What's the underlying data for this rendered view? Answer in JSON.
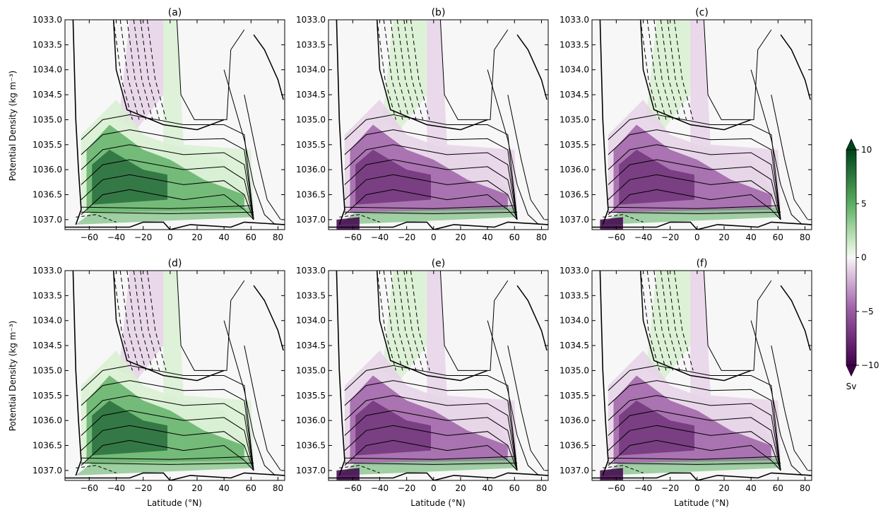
{
  "chart_data": {
    "type": "heatmap",
    "panels": [
      {
        "label": "(a)",
        "pattern": "positive"
      },
      {
        "label": "(b)",
        "pattern": "negative"
      },
      {
        "label": "(c)",
        "pattern": "negative"
      },
      {
        "label": "(d)",
        "pattern": "positive"
      },
      {
        "label": "(e)",
        "pattern": "negative"
      },
      {
        "label": "(f)",
        "pattern": "negative"
      }
    ],
    "xlabel": "Latitude (°N)",
    "ylabel": "Potential Density (kg m⁻³)",
    "xlim": [
      -78,
      85
    ],
    "ylim": [
      1033.0,
      1037.2
    ],
    "xticks": [
      -60,
      -40,
      -20,
      0,
      20,
      40,
      60,
      80
    ],
    "xtick_labels": [
      "−60",
      "−40",
      "−20",
      "0",
      "20",
      "40",
      "60",
      "80"
    ],
    "yticks": [
      1033.0,
      1033.5,
      1034.0,
      1034.5,
      1035.0,
      1035.5,
      1036.0,
      1036.5,
      1037.0
    ],
    "ytick_labels": [
      "1033.0",
      "1033.5",
      "1034.0",
      "1034.5",
      "1035.0",
      "1035.5",
      "1036.0",
      "1036.5",
      "1037.0"
    ],
    "colorbar": {
      "label": "Sv",
      "range": [
        -10,
        10
      ],
      "ticks": [
        10,
        5,
        0,
        -5,
        -10
      ],
      "tick_labels": [
        "10",
        "5",
        "0",
        "−5",
        "−10"
      ],
      "colors": {
        "neg_strong": "#40004b",
        "neg_mid": "#9a5aa3",
        "neg_weak": "#e7d4e8",
        "zero": "#f7f7f7",
        "pos_weak": "#d9f0d3",
        "pos_mid": "#5aae61",
        "pos_strong": "#00441b"
      }
    }
  }
}
